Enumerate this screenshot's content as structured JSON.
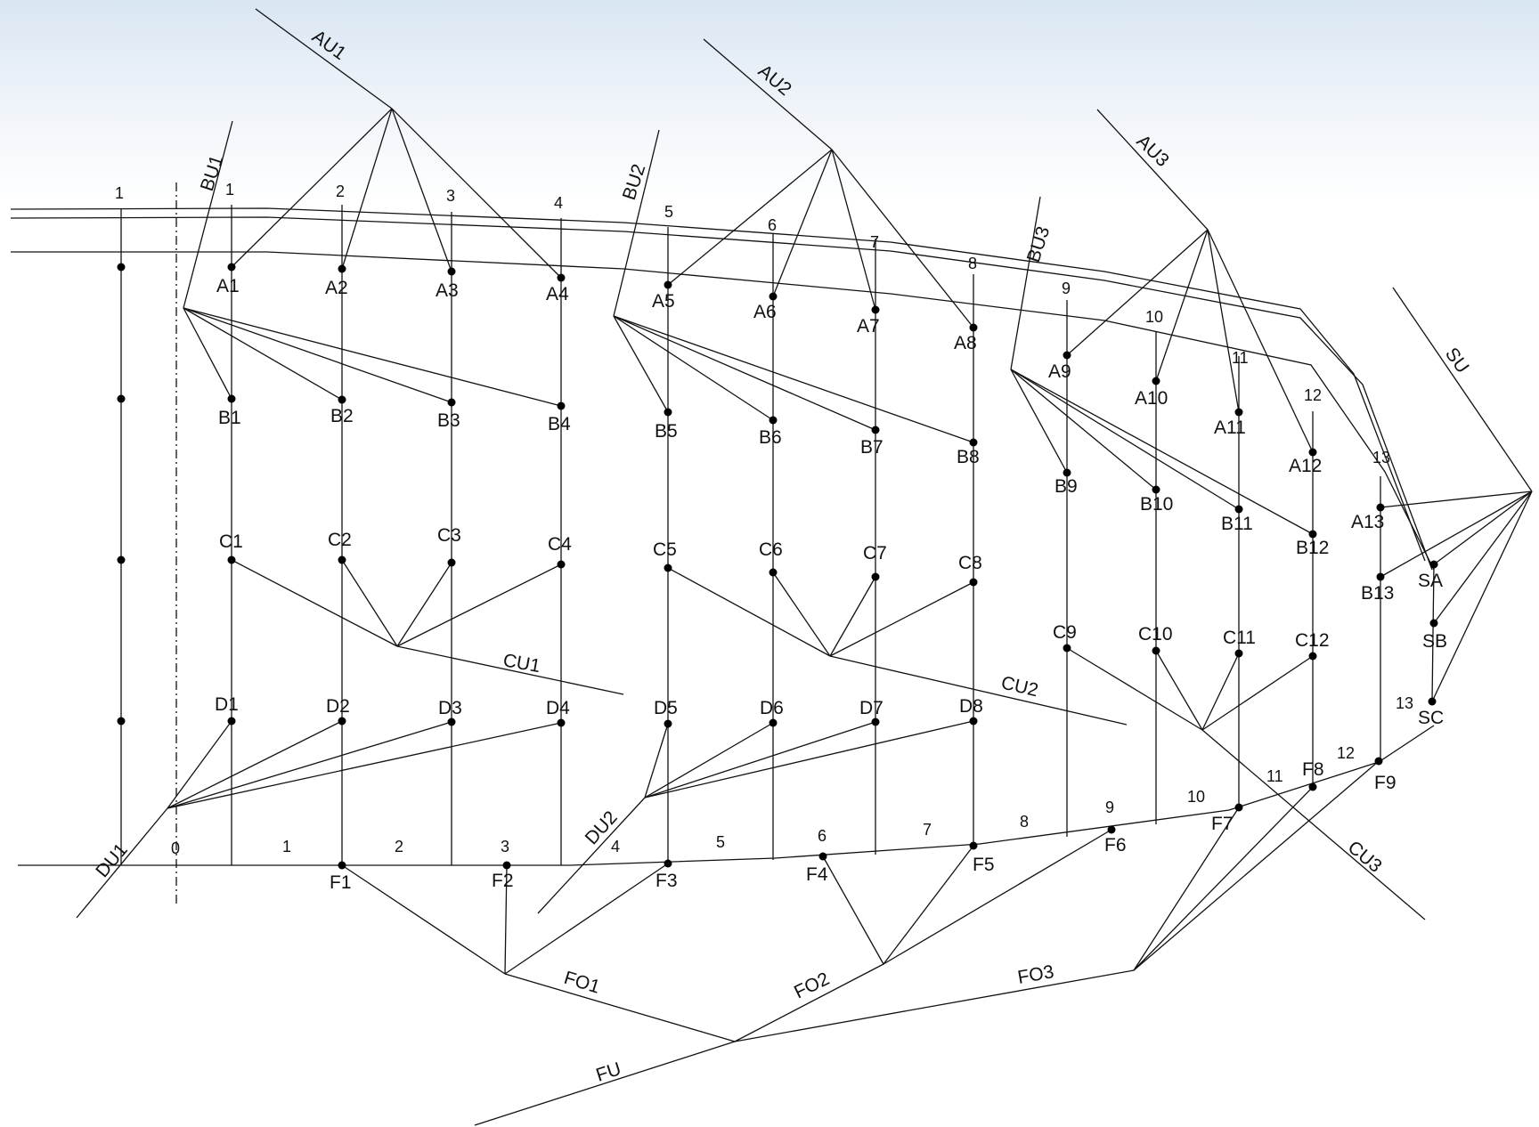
{
  "labels": {
    "A1": "A1",
    "A2": "A2",
    "A3": "A3",
    "A4": "A4",
    "A5": "A5",
    "A6": "A6",
    "A7": "A7",
    "A8": "A8",
    "A9": "A9",
    "A10": "A10",
    "A11": "A11",
    "A12": "A12",
    "A13": "A13",
    "B1": "B1",
    "B2": "B2",
    "B3": "B3",
    "B4": "B4",
    "B5": "B5",
    "B6": "B6",
    "B7": "B7",
    "B8": "B8",
    "B9": "B9",
    "B10": "B10",
    "B11": "B11",
    "B12": "B12",
    "B13": "B13",
    "C1": "C1",
    "C2": "C2",
    "C3": "C3",
    "C4": "C4",
    "C5": "C5",
    "C6": "C6",
    "C7": "C7",
    "C8": "C8",
    "C9": "C9",
    "C10": "C10",
    "C11": "C11",
    "C12": "C12",
    "D1": "D1",
    "D2": "D2",
    "D3": "D3",
    "D4": "D4",
    "D5": "D5",
    "D6": "D6",
    "D7": "D7",
    "D8": "D8",
    "F1": "F1",
    "F2": "F2",
    "F3": "F3",
    "F4": "F4",
    "F5": "F5",
    "F6": "F6",
    "F7": "F7",
    "F8": "F8",
    "F9": "F9",
    "SA": "SA",
    "SB": "SB",
    "SC": "SC"
  },
  "lines": {
    "AU1": "AU1",
    "AU2": "AU2",
    "AU3": "AU3",
    "BU1": "BU1",
    "BU2": "BU2",
    "BU3": "BU3",
    "CU1": "CU1",
    "CU2": "CU2",
    "CU3": "CU3",
    "DU1": "DU1",
    "DU2": "DU2",
    "FO1": "FO1",
    "FO2": "FO2",
    "FO3": "FO3",
    "FU": "FU",
    "SU": "SU"
  },
  "top_numbers": [
    "1",
    "1",
    "2",
    "3",
    "4",
    "5",
    "6",
    "7",
    "8",
    "9",
    "10",
    "11",
    "12",
    "13"
  ],
  "bottom_numbers": [
    "0",
    "1",
    "2",
    "3",
    "4",
    "5",
    "6",
    "7",
    "8",
    "9",
    "10",
    "11",
    "12",
    "13"
  ]
}
